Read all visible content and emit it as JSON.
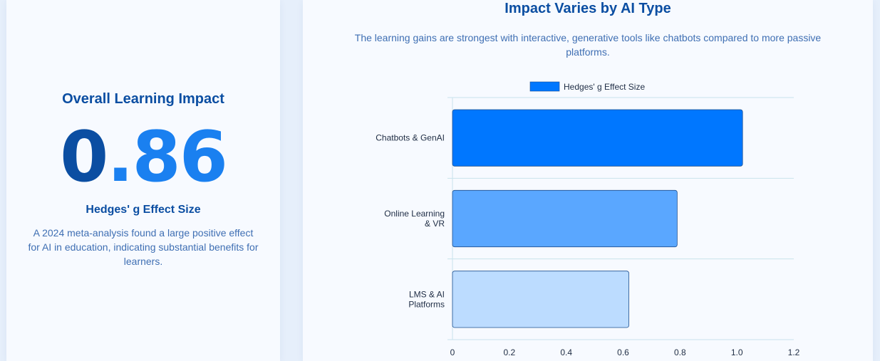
{
  "summary": {
    "title": "Overall Learning Impact",
    "value_int": "0",
    "value_dec": ".86",
    "label": "Hedges' g Effect Size",
    "description": "A 2024 meta-analysis found a large positive effect for AI in education, indicating substantial benefits for learners."
  },
  "chart_section": {
    "title": "Impact Varies by AI Type",
    "subtitle": "The learning gains are strongest with interactive, generative tools like chatbots compared to more passive platforms."
  },
  "chart_data": {
    "type": "bar",
    "orientation": "horizontal",
    "categories": [
      [
        "Chatbots & GenAI"
      ],
      [
        "Online Learning",
        "& VR"
      ],
      [
        "LMS & AI",
        "Platforms"
      ]
    ],
    "series": [
      {
        "name": "Hedges' g Effect Size",
        "values": [
          1.02,
          0.79,
          0.62
        ]
      }
    ],
    "bar_colors": [
      "#0077ff",
      "#5aa7ff",
      "#bcdcff"
    ],
    "bar_border": "#1d4f8f",
    "xlim": [
      0,
      1.2
    ],
    "xticks": [
      "0",
      "0.2",
      "0.4",
      "0.6",
      "0.8",
      "1.0",
      "1.2"
    ],
    "grid": true,
    "legend_position": "top"
  },
  "colors": {
    "primary": "#0b4ea2",
    "accent": "#1a80f0",
    "muted_text": "#3f6fb3",
    "grid": "#c9e3ec"
  }
}
